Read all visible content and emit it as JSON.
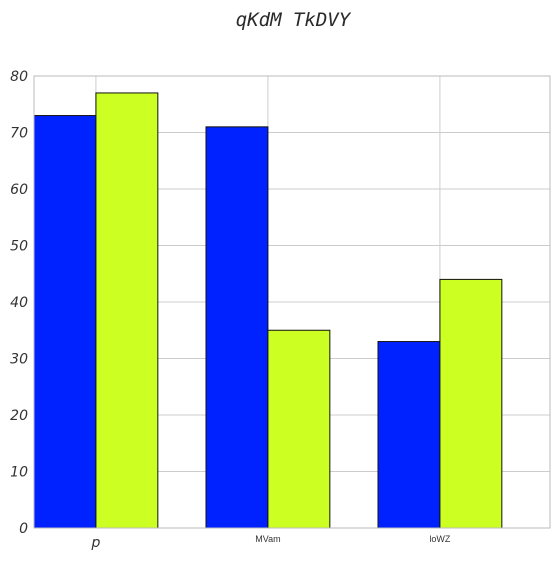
{
  "chart_data": {
    "type": "bar",
    "title": "qKdM TkDVY",
    "xlabel": "",
    "ylabel": "",
    "categories": [
      "p",
      "MVam",
      "loWZ"
    ],
    "series": [
      {
        "values": [
          73,
          71,
          33
        ],
        "color": "#0022ff"
      },
      {
        "values": [
          77,
          35,
          44
        ],
        "color": "#ccff22"
      }
    ],
    "ylim": [
      0,
      80
    ],
    "yticks": [
      "0",
      "10",
      "20",
      "30",
      "40",
      "50",
      "60",
      "70",
      "80"
    ],
    "grid": true,
    "legend": "none"
  }
}
